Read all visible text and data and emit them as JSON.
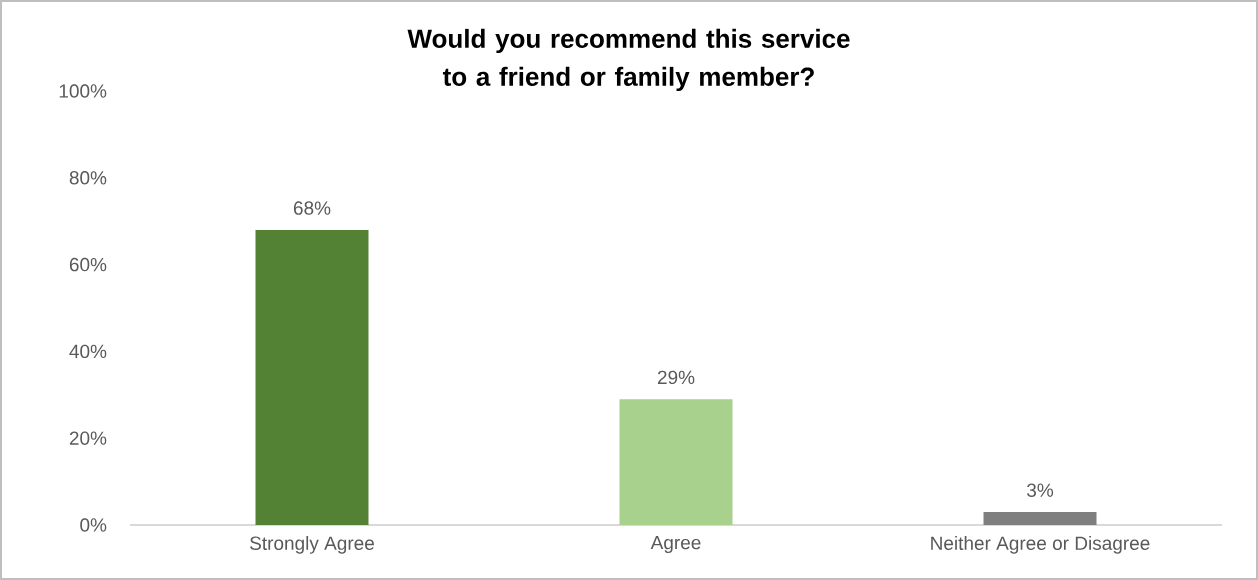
{
  "chart_data": {
    "type": "bar",
    "title": "Would you recommend this service to a friend or family member?",
    "categories": [
      "Strongly Agree",
      "Agree",
      "Neither Agree or Disagree"
    ],
    "values": [
      68,
      29,
      3
    ],
    "colors": [
      "#548235",
      "#a9d18e",
      "#7f7f7f"
    ],
    "value_labels": [
      "68%",
      "29%",
      "3%"
    ],
    "ylim": [
      0,
      100
    ],
    "yticks": [
      {
        "value": 0,
        "label": "0%"
      },
      {
        "value": 20,
        "label": "20%"
      },
      {
        "value": 40,
        "label": "40%"
      },
      {
        "value": 60,
        "label": "60%"
      },
      {
        "value": 80,
        "label": "80%"
      },
      {
        "value": 100,
        "label": "100%"
      }
    ]
  }
}
